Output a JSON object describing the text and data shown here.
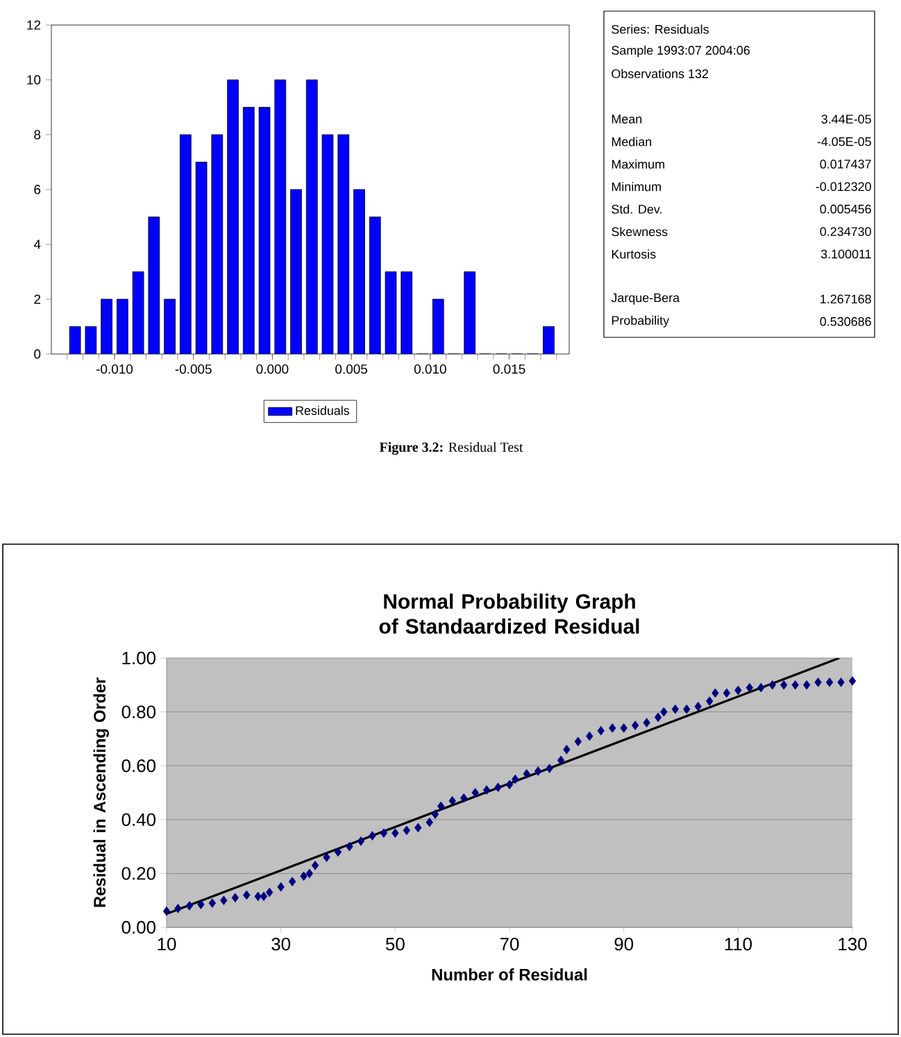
{
  "chart_data": [
    {
      "type": "histogram",
      "bins": [
        -0.013,
        -0.012,
        -0.011,
        -0.01,
        -0.009,
        -0.008,
        -0.007,
        -0.006,
        -0.005,
        -0.004,
        -0.003,
        -0.002,
        -0.001,
        0.0,
        0.001,
        0.002,
        0.003,
        0.004,
        0.005,
        0.006,
        0.007,
        0.008,
        0.009,
        0.01,
        0.011,
        0.012,
        0.013,
        0.014,
        0.015,
        0.016,
        0.017,
        0.018
      ],
      "series": [
        {
          "name": "Residuals",
          "color": "#0000ff",
          "values": [
            1,
            1,
            2,
            2,
            3,
            5,
            2,
            8,
            7,
            8,
            10,
            9,
            9,
            10,
            6,
            10,
            8,
            8,
            6,
            5,
            3,
            3,
            0,
            2,
            0,
            3,
            0,
            0,
            0,
            0,
            1
          ]
        }
      ],
      "xlim": [
        -0.014,
        0.0188
      ],
      "ylim": [
        0,
        12
      ],
      "xticks": [
        {
          "value": -0.01,
          "label": "-0.010"
        },
        {
          "value": -0.005,
          "label": "-0.005"
        },
        {
          "value": 0,
          "label": "0.000"
        },
        {
          "value": 0.005,
          "label": "0.005"
        },
        {
          "value": 0.01,
          "label": "0.010"
        },
        {
          "value": 0.015,
          "label": "0.015"
        }
      ],
      "yticks": [
        0,
        2,
        4,
        6,
        8,
        10,
        12
      ],
      "legend": "bottom",
      "annotations": [
        "**Figure 3.2:** Residual Test"
      ]
    },
    {
      "type": "other",
      "annotations": [
        "Series: Residuals",
        "Sample 1993:07 2004:06",
        "Observations 132",
        "Mean",
        "3.44E-05",
        "Median",
        "-4.05E-05",
        "Maximum",
        "0.017437",
        "Minimum",
        "-0.012320",
        "Std. Dev.",
        "0.005456",
        "Skewness",
        "0.234730",
        "Kurtosis",
        "3.100011",
        "Jarque-Bera",
        "1.267168",
        "Probability",
        "0.530686"
      ]
    },
    {
      "type": "scatter",
      "title": "Normal Probability Graph of Standaardized Residual",
      "xlabel": "Number of Residual",
      "ylabel": "Residual in Ascending Order",
      "series": [
        {
          "type": "scatter",
          "color": "#000080",
          "marker": "diamond",
          "x": [
            10,
            12,
            14,
            16,
            18,
            20,
            22,
            24,
            26,
            27,
            28,
            30,
            32,
            34,
            35,
            36,
            38,
            40,
            42,
            44,
            46,
            48,
            50,
            52,
            54,
            56,
            57,
            58,
            60,
            62,
            64,
            66,
            68,
            70,
            71,
            73,
            75,
            77,
            79,
            80,
            82,
            84,
            86,
            88,
            90,
            92,
            94,
            96,
            97,
            99,
            101,
            103,
            105,
            106,
            108,
            110,
            112,
            114,
            116,
            118,
            120,
            122,
            124,
            126,
            128,
            130
          ],
          "values": [
            0.06,
            0.07,
            0.08,
            0.085,
            0.09,
            0.1,
            0.11,
            0.12,
            0.115,
            0.115,
            0.13,
            0.15,
            0.17,
            0.19,
            0.2,
            0.23,
            0.26,
            0.28,
            0.3,
            0.32,
            0.34,
            0.35,
            0.35,
            0.36,
            0.37,
            0.39,
            0.42,
            0.45,
            0.47,
            0.48,
            0.5,
            0.51,
            0.52,
            0.53,
            0.55,
            0.57,
            0.58,
            0.59,
            0.62,
            0.66,
            0.69,
            0.71,
            0.73,
            0.74,
            0.74,
            0.75,
            0.76,
            0.78,
            0.8,
            0.81,
            0.81,
            0.82,
            0.84,
            0.87,
            0.87,
            0.88,
            0.89,
            0.89,
            0.9,
            0.9,
            0.9,
            0.9,
            0.91,
            0.91,
            0.91,
            0.915
          ]
        },
        {
          "type": "line",
          "color": "#000000",
          "marker": "none",
          "line_style": "solid",
          "x": [
            10,
            127.7
          ],
          "values": [
            0.05,
            1.0
          ]
        }
      ],
      "xlim": [
        10,
        130
      ],
      "ylim": [
        0,
        1
      ],
      "xticks": [
        10,
        30,
        50,
        70,
        90,
        110,
        130
      ],
      "yticks": [
        {
          "value": 0,
          "label": "0.00"
        },
        {
          "value": 0.2,
          "label": "0.20"
        },
        {
          "value": 0.4,
          "label": "0.40"
        },
        {
          "value": 0.6,
          "label": "0.60"
        },
        {
          "value": 0.8,
          "label": "0.80"
        },
        {
          "value": 1,
          "label": "1.00"
        }
      ],
      "grid": "y",
      "legend": false
    }
  ]
}
